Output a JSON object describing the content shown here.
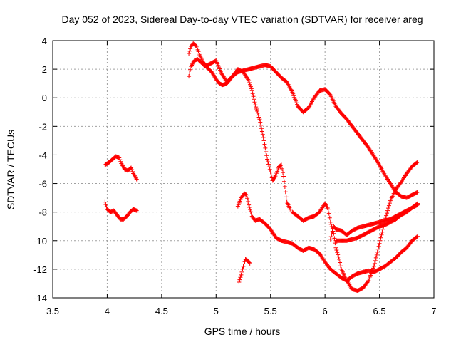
{
  "chart_data": {
    "type": "scatter",
    "title": "Day 052 of 2023, Sidereal Day-to-day VTEC variation (SDTVAR) for receiver areg",
    "xlabel": "GPS time / hours",
    "ylabel": "SDTVAR / TECUs",
    "xlim": [
      3.5,
      7.0
    ],
    "ylim": [
      -14,
      4
    ],
    "xticks": [
      3.5,
      4,
      4.5,
      5,
      5.5,
      6,
      6.5,
      7
    ],
    "xtick_labels": [
      "3.5",
      "4",
      "4.5",
      "5",
      "5.5",
      "6",
      "6.5",
      "7"
    ],
    "yticks": [
      -14,
      -12,
      -10,
      -8,
      -6,
      -4,
      -2,
      0,
      2,
      4
    ],
    "ytick_labels": [
      "-14",
      "-12",
      "-10",
      "-8",
      "-6",
      "-4",
      "-2",
      "0",
      "2",
      "4"
    ],
    "grid": true,
    "marker": "+",
    "color": "#ff0000",
    "series": [
      {
        "name": "seg1",
        "x": [
          3.98,
          4.02,
          4.05,
          4.08,
          4.11,
          4.13,
          4.16,
          4.19,
          4.22,
          4.24,
          4.27
        ],
        "y": [
          -4.7,
          -4.5,
          -4.3,
          -4.1,
          -4.2,
          -4.6,
          -5.0,
          -5.1,
          -4.9,
          -5.3,
          -5.7
        ]
      },
      {
        "name": "seg2",
        "x": [
          3.98,
          4.0,
          4.03,
          4.06,
          4.09,
          4.12,
          4.15,
          4.18,
          4.21,
          4.24,
          4.27
        ],
        "y": [
          -7.3,
          -7.8,
          -8.0,
          -7.9,
          -8.2,
          -8.5,
          -8.5,
          -8.3,
          -8.0,
          -7.8,
          -7.9
        ]
      },
      {
        "name": "seg3",
        "x": [
          4.75,
          4.77,
          4.8,
          4.83,
          4.86,
          4.9,
          4.95,
          5.0,
          5.05,
          5.1,
          5.15,
          5.2,
          5.25,
          5.3,
          5.35,
          5.4,
          5.45,
          5.5,
          5.55,
          5.6,
          5.65,
          5.7,
          5.75,
          5.8,
          5.85,
          5.9,
          5.95,
          6.0,
          6.05,
          6.1,
          6.15,
          6.2,
          6.3,
          6.4,
          6.5,
          6.55,
          6.6,
          6.65,
          6.7,
          6.75,
          6.8,
          6.85
        ],
        "y": [
          1.5,
          2.2,
          2.6,
          2.7,
          2.5,
          2.2,
          2.4,
          2.6,
          1.7,
          1.1,
          1.5,
          1.8,
          1.9,
          2.0,
          2.1,
          2.2,
          2.3,
          2.2,
          1.8,
          1.4,
          1.1,
          0.4,
          -0.6,
          -1.0,
          -0.7,
          0.0,
          0.5,
          0.6,
          0.2,
          -0.6,
          -1.1,
          -1.5,
          -2.5,
          -3.5,
          -4.7,
          -5.4,
          -6.0,
          -6.6,
          -6.9,
          -7.0,
          -6.8,
          -6.6
        ]
      },
      {
        "name": "seg4",
        "x": [
          4.75,
          4.77,
          4.79,
          4.82,
          4.85,
          4.88,
          4.92,
          4.96,
          5.0,
          5.03,
          5.06,
          5.1,
          5.15,
          5.2,
          5.25,
          5.3,
          5.33,
          5.36,
          5.4,
          5.44,
          5.47,
          5.5,
          5.52,
          5.55,
          5.58,
          5.6,
          5.62,
          5.65,
          5.68
        ],
        "y": [
          3.1,
          3.6,
          3.8,
          3.6,
          3.0,
          2.5,
          2.1,
          1.8,
          1.3,
          1.0,
          0.9,
          1.0,
          1.5,
          2.0,
          1.8,
          1.2,
          0.5,
          -0.5,
          -1.5,
          -3.0,
          -4.3,
          -5.2,
          -5.8,
          -5.4,
          -4.8,
          -4.7,
          -5.5,
          -7.3,
          -7.8
        ]
      },
      {
        "name": "seg5",
        "x": [
          5.2,
          5.23,
          5.26,
          5.28,
          5.3,
          5.33,
          5.36,
          5.4,
          5.45,
          5.5,
          5.55,
          5.6,
          5.65,
          5.7,
          5.75,
          5.8,
          5.85,
          5.9,
          5.95,
          6.0,
          6.05,
          6.1,
          6.15,
          6.2,
          6.25,
          6.3,
          6.35,
          6.4,
          6.45,
          6.5,
          6.55,
          6.6,
          6.65,
          6.7,
          6.75,
          6.8,
          6.85
        ],
        "y": [
          -7.6,
          -7.0,
          -6.7,
          -6.8,
          -7.5,
          -8.3,
          -8.6,
          -8.5,
          -8.8,
          -9.2,
          -9.8,
          -10.0,
          -10.1,
          -10.2,
          -10.5,
          -10.7,
          -10.5,
          -10.6,
          -10.9,
          -11.5,
          -12.0,
          -12.3,
          -12.6,
          -12.8,
          -12.5,
          -12.3,
          -12.2,
          -12.1,
          -12.2,
          -12.0,
          -11.8,
          -11.5,
          -11.2,
          -10.8,
          -10.5,
          -10.0,
          -9.7
        ]
      },
      {
        "name": "seg6",
        "x": [
          5.21,
          5.23,
          5.25,
          5.27,
          5.29,
          5.31
        ],
        "y": [
          -12.9,
          -12.4,
          -11.8,
          -11.3,
          -11.4,
          -11.6
        ]
      },
      {
        "name": "seg7",
        "x": [
          5.7,
          5.75,
          5.8,
          5.85,
          5.9,
          5.95,
          6.0,
          6.03,
          6.05,
          6.08,
          6.1,
          6.13,
          6.15,
          6.2,
          6.25,
          6.3,
          6.35,
          6.4,
          6.45,
          6.5,
          6.55,
          6.6,
          6.65,
          6.7,
          6.75,
          6.8,
          6.85
        ],
        "y": [
          -8.0,
          -8.3,
          -8.6,
          -8.4,
          -8.3,
          -8.0,
          -7.4,
          -7.8,
          -8.7,
          -9.5,
          -10.5,
          -11.3,
          -12.0,
          -12.8,
          -13.4,
          -13.5,
          -13.3,
          -12.8,
          -11.8,
          -10.2,
          -8.6,
          -7.2,
          -6.4,
          -5.9,
          -5.3,
          -4.8,
          -4.5
        ]
      },
      {
        "name": "seg8",
        "x": [
          6.05,
          6.08,
          6.1,
          6.15,
          6.2,
          6.25,
          6.3,
          6.35,
          6.4,
          6.45,
          6.5,
          6.55,
          6.6,
          6.65,
          6.7,
          6.75,
          6.8,
          6.85
        ],
        "y": [
          -9.9,
          -9.0,
          -9.2,
          -9.3,
          -9.6,
          -9.3,
          -9.1,
          -9.0,
          -8.9,
          -8.8,
          -8.7,
          -8.6,
          -8.5,
          -8.3,
          -8.1,
          -7.9,
          -7.7,
          -7.5
        ]
      },
      {
        "name": "seg9",
        "x": [
          6.1,
          6.15,
          6.2,
          6.25,
          6.3,
          6.35,
          6.4,
          6.45,
          6.5,
          6.55,
          6.6,
          6.65,
          6.7,
          6.75,
          6.8,
          6.85
        ],
        "y": [
          -10.0,
          -10.0,
          -10.0,
          -9.9,
          -9.8,
          -9.6,
          -9.4,
          -9.2,
          -9.0,
          -8.9,
          -8.7,
          -8.5,
          -8.2,
          -8.0,
          -7.7,
          -7.4
        ]
      }
    ]
  }
}
